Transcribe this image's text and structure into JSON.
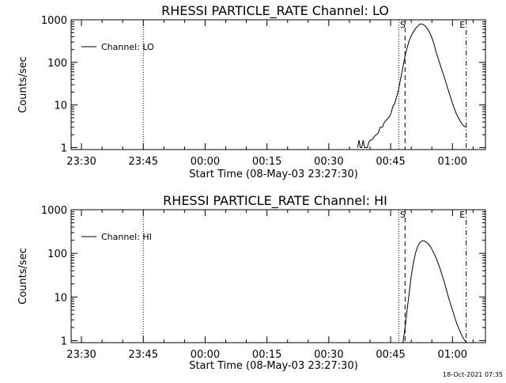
{
  "footer": {
    "timestamp": "18-Oct-2021 07:35"
  },
  "chart_data": [
    {
      "type": "line",
      "title": "RHESSI PARTICLE_RATE Channel: LO",
      "xlabel": "Start Time (08-May-03 23:27:30)",
      "ylabel": "Counts/sec",
      "y_scale": "log",
      "xlim": [
        "23:27:30",
        "01:08:00"
      ],
      "ylim": [
        0.9,
        1000
      ],
      "x_ticks": [
        "23:30",
        "23:45",
        "00:00",
        "00:15",
        "00:30",
        "00:45",
        "01:00"
      ],
      "y_ticks": [
        "1",
        "10",
        "100",
        "1000"
      ],
      "legend": {
        "position": "top-left",
        "entries": [
          "Channel: LO"
        ]
      },
      "annotations": [
        {
          "label": "",
          "time": "23:45:00",
          "style": "dotted"
        },
        {
          "label": "",
          "time": "00:47:00",
          "style": "dotted"
        },
        {
          "label": "S",
          "time": "00:48:30",
          "style": "dashed"
        },
        {
          "label": "E",
          "time": "01:03:20",
          "style": "dashdot"
        }
      ],
      "series": [
        {
          "name": "Channel: LO",
          "x": [
            "00:37:00",
            "00:37:20",
            "00:37:40",
            "00:38:00",
            "00:38:20",
            "00:38:40",
            "00:39:00",
            "00:39:20",
            "00:39:40",
            "00:40:00",
            "00:40:20",
            "00:40:40",
            "00:41:00",
            "00:41:30",
            "00:42:00",
            "00:42:30",
            "00:43:00",
            "00:43:30",
            "00:44:00",
            "00:44:30",
            "00:45:00",
            "00:45:30",
            "00:46:00",
            "00:46:30",
            "00:47:00",
            "00:47:30",
            "00:48:00",
            "00:48:30",
            "00:49:00",
            "00:49:30",
            "00:50:00",
            "00:50:30",
            "00:51:00",
            "00:51:30",
            "00:52:00",
            "00:52:30",
            "00:53:00",
            "00:53:30",
            "00:54:00",
            "00:54:30",
            "00:55:00",
            "00:55:30",
            "00:56:00",
            "00:57:00",
            "00:58:00",
            "00:59:00",
            "01:00:00",
            "01:01:00",
            "01:02:00",
            "01:02:30",
            "01:03:00",
            "01:03:30"
          ],
          "values": [
            1,
            1.5,
            1,
            1,
            1.5,
            1,
            1,
            1,
            1.3,
            1.5,
            1.5,
            1.6,
            1.8,
            2,
            2.2,
            3,
            3,
            4,
            4.5,
            5,
            6,
            9,
            11,
            16,
            25,
            45,
            80,
            140,
            220,
            320,
            420,
            520,
            620,
            700,
            780,
            800,
            760,
            700,
            600,
            500,
            380,
            280,
            180,
            90,
            45,
            22,
            11,
            6,
            4,
            3.4,
            3.1,
            3
          ]
        }
      ]
    },
    {
      "type": "line",
      "title": "RHESSI PARTICLE_RATE Channel: HI",
      "xlabel": "Start Time (08-May-03 23:27:30)",
      "ylabel": "Counts/sec",
      "y_scale": "log",
      "xlim": [
        "23:27:30",
        "01:08:00"
      ],
      "ylim": [
        0.9,
        1000
      ],
      "x_ticks": [
        "23:30",
        "23:45",
        "00:00",
        "00:15",
        "00:30",
        "00:45",
        "01:00"
      ],
      "y_ticks": [
        "1",
        "10",
        "100",
        "1000"
      ],
      "legend": {
        "position": "top-left",
        "entries": [
          "Channel: HI"
        ]
      },
      "annotations": [
        {
          "label": "",
          "time": "23:45:00",
          "style": "dotted"
        },
        {
          "label": "",
          "time": "00:47:00",
          "style": "dotted"
        },
        {
          "label": "S",
          "time": "00:48:30",
          "style": "dashed"
        },
        {
          "label": "E",
          "time": "01:03:20",
          "style": "dashdot"
        }
      ],
      "series": [
        {
          "name": "Channel: HI",
          "x": [
            "00:48:00",
            "00:48:30",
            "00:49:00",
            "00:49:30",
            "00:50:00",
            "00:50:30",
            "00:51:00",
            "00:51:30",
            "00:52:00",
            "00:52:30",
            "00:53:00",
            "00:53:30",
            "00:54:00",
            "00:54:30",
            "00:55:00",
            "00:55:30",
            "00:56:00",
            "00:57:00",
            "00:58:00",
            "00:59:00",
            "01:00:00",
            "01:01:00",
            "01:02:00",
            "01:02:30",
            "01:03:00",
            "01:03:30"
          ],
          "values": [
            0.9,
            2,
            5,
            12,
            30,
            60,
            100,
            140,
            170,
            190,
            195,
            185,
            170,
            150,
            125,
            100,
            80,
            45,
            22,
            10,
            5,
            2.5,
            1.5,
            1.2,
            1,
            0.9
          ]
        }
      ]
    }
  ]
}
